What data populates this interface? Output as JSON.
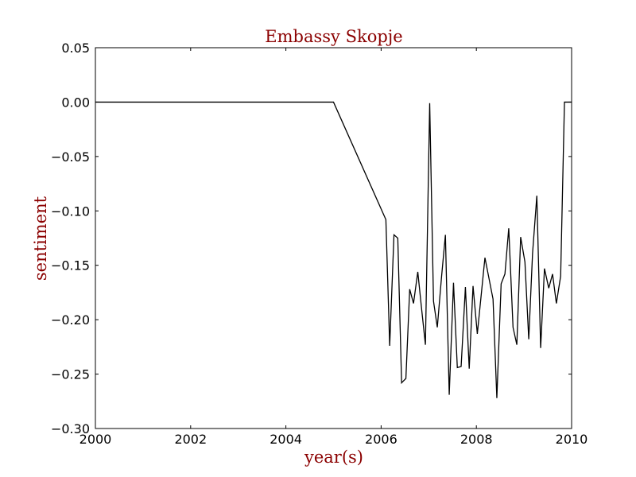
{
  "chart_data": {
    "type": "line",
    "title": "Embassy Skopje",
    "xlabel": "year(s)",
    "ylabel": "sentiment",
    "xlim": [
      2000,
      2010
    ],
    "ylim": [
      -0.3,
      0.05
    ],
    "xticks": [
      2000,
      2002,
      2004,
      2006,
      2008,
      2010
    ],
    "xtick_labels": [
      "2000",
      "2002",
      "2004",
      "2006",
      "2008",
      "2010"
    ],
    "yticks": [
      0.05,
      0.0,
      -0.05,
      -0.1,
      -0.15,
      -0.2,
      -0.25,
      -0.3
    ],
    "ytick_labels": [
      "0.05",
      "0.00",
      "−0.05",
      "−0.10",
      "−0.15",
      "−0.20",
      "−0.25",
      "−0.30"
    ],
    "grid": false,
    "legend": "none",
    "series": [
      {
        "color": "#000000",
        "x": [
          2000.0,
          2005.0,
          2006.1,
          2006.18,
          2006.27,
          2006.35,
          2006.43,
          2006.52,
          2006.6,
          2006.68,
          2006.77,
          2006.85,
          2006.93,
          2007.02,
          2007.1,
          2007.18,
          2007.27,
          2007.35,
          2007.43,
          2007.52,
          2007.6,
          2007.68,
          2007.77,
          2007.85,
          2007.93,
          2008.02,
          2008.18,
          2008.35,
          2008.43,
          2008.52,
          2008.6,
          2008.68,
          2008.77,
          2008.85,
          2008.93,
          2009.02,
          2009.1,
          2009.18,
          2009.27,
          2009.35,
          2009.43,
          2009.52,
          2009.6,
          2009.68,
          2009.77,
          2009.85,
          2009.93,
          2010.0
        ],
        "y": [
          0.0,
          0.0,
          -0.108,
          -0.224,
          -0.122,
          -0.125,
          -0.258,
          -0.254,
          -0.172,
          -0.185,
          -0.156,
          -0.19,
          -0.223,
          -0.001,
          -0.183,
          -0.207,
          -0.16,
          -0.122,
          -0.269,
          -0.166,
          -0.244,
          -0.243,
          -0.17,
          -0.245,
          -0.169,
          -0.213,
          -0.143,
          -0.181,
          -0.272,
          -0.167,
          -0.158,
          -0.116,
          -0.207,
          -0.223,
          -0.124,
          -0.147,
          -0.218,
          -0.139,
          -0.086,
          -0.226,
          -0.153,
          -0.171,
          -0.158,
          -0.185,
          -0.16,
          0.0,
          0.0,
          0.0
        ]
      }
    ]
  },
  "colors": {
    "title": "#8b0000",
    "axis_label": "#8b0000",
    "line": "#000000",
    "frame": "#000000"
  }
}
